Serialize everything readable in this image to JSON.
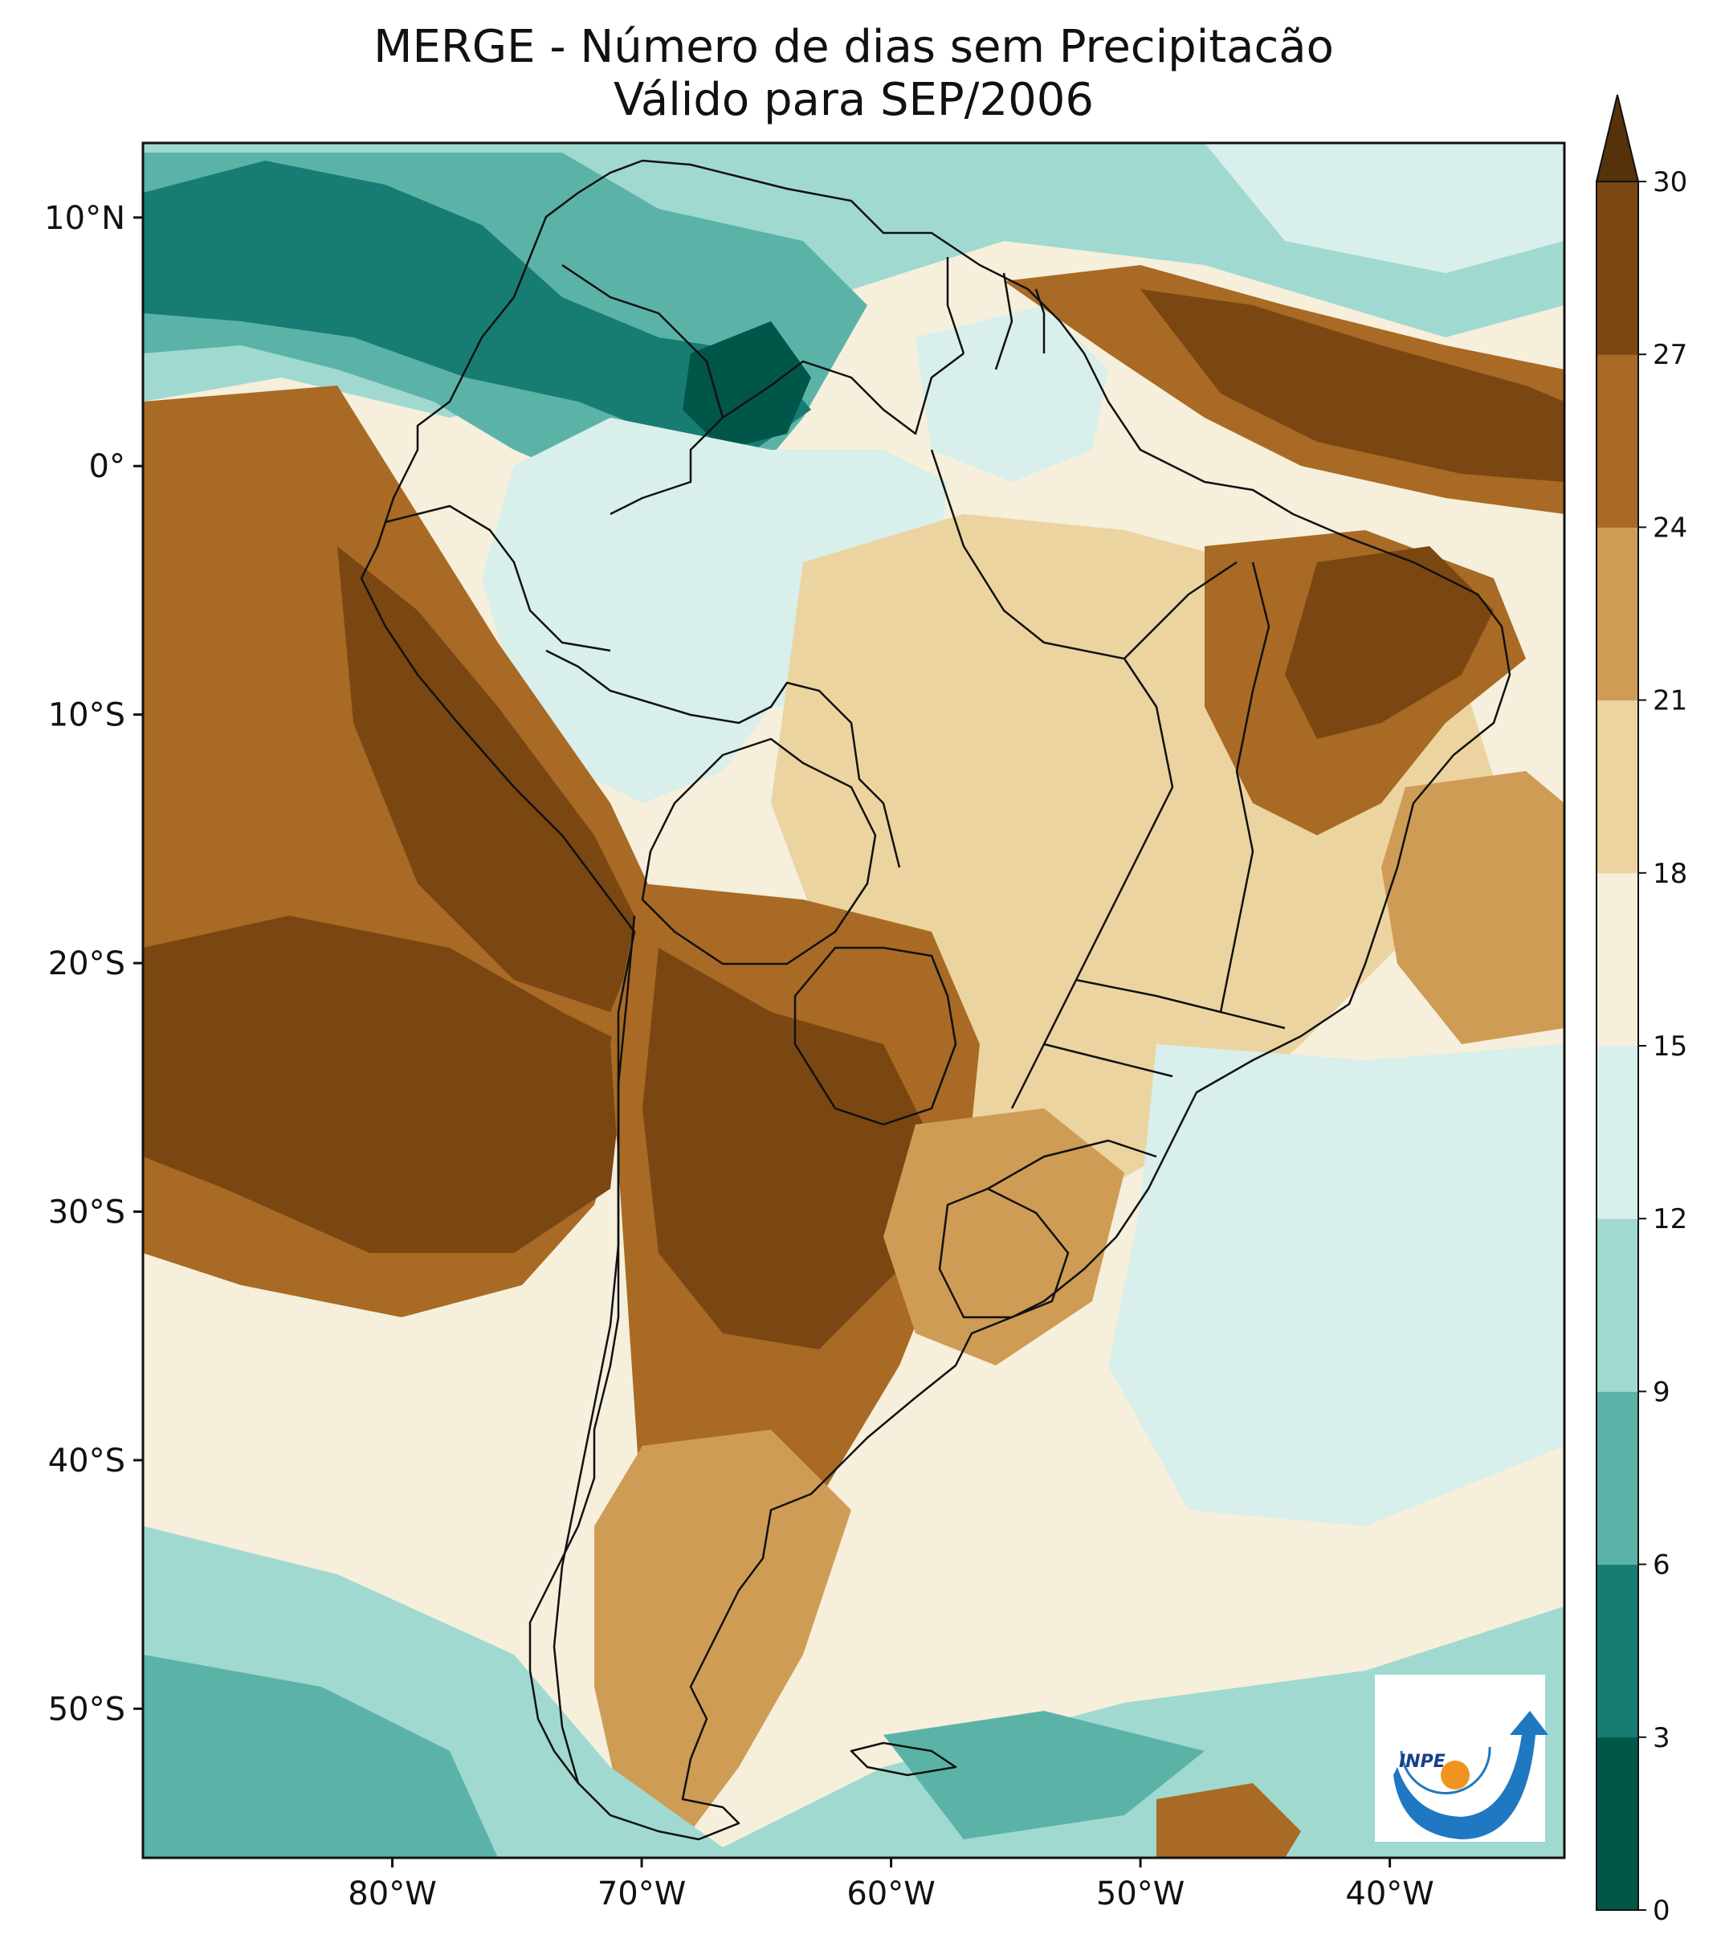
{
  "title": {
    "line1": "MERGE - Número de dias sem Precipitacão",
    "line2": "Válido para SEP/2006"
  },
  "map": {
    "lat_range": [
      -56,
      13
    ],
    "lon_range": [
      -90,
      -33
    ],
    "lat_ticks": [
      {
        "value": 10,
        "label": "10°N"
      },
      {
        "value": 0,
        "label": "0°"
      },
      {
        "value": -10,
        "label": "10°S"
      },
      {
        "value": -20,
        "label": "20°S"
      },
      {
        "value": -30,
        "label": "30°S"
      },
      {
        "value": -40,
        "label": "40°S"
      },
      {
        "value": -50,
        "label": "50°S"
      }
    ],
    "lon_ticks": [
      {
        "value": -80,
        "label": "80°W"
      },
      {
        "value": -70,
        "label": "70°W"
      },
      {
        "value": -60,
        "label": "60°W"
      },
      {
        "value": -50,
        "label": "50°W"
      },
      {
        "value": -40,
        "label": "40°W"
      }
    ]
  },
  "colorbar": {
    "levels": [
      0,
      3,
      6,
      9,
      12,
      15,
      18,
      21,
      24,
      27,
      30
    ],
    "colors": [
      "#01564a",
      "#177d73",
      "#5bb3a8",
      "#a0d9cf",
      "#d8efeb",
      "#f5efdc",
      "#ebd49f",
      "#cf9c55",
      "#a86a24",
      "#7a4712"
    ],
    "extend_color": "#55320a",
    "labels": [
      "0",
      "3",
      "6",
      "9",
      "12",
      "15",
      "18",
      "21",
      "24",
      "27",
      "30"
    ]
  },
  "logo": {
    "text": "INPE"
  },
  "colors": {
    "ocean_default": "#f5efdc",
    "border": "#111111"
  }
}
